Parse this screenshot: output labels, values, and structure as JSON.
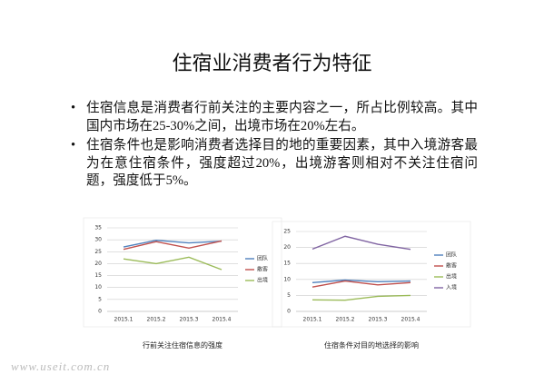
{
  "title": "住宿业消费者行为特征",
  "bullets": [
    "住宿信息是消费者行前关注的主要内容之一，所占比例较高。其中国内市场在25-30%之间，出境市场在20%左右。",
    "住宿条件也是影响消费者选择目的地的重要因素，其中入境游客最为在意住宿条件，强度超过20%，出境游客则相对不关注住宿问题，强度低于5%。"
  ],
  "chart_data": [
    {
      "type": "line",
      "caption": "行前关注住宿信息的强度",
      "categories": [
        "2015.1",
        "2015.2",
        "2015.3",
        "2015.4"
      ],
      "series": [
        {
          "name": "团队",
          "color": "#4f81bd",
          "values": [
            27,
            29.8,
            28.7,
            29.4
          ]
        },
        {
          "name": "散客",
          "color": "#c0504d",
          "values": [
            26,
            29.2,
            26.5,
            29.5
          ]
        },
        {
          "name": "出境",
          "color": "#9bbb59",
          "values": [
            22,
            20,
            22.7,
            17.5
          ]
        }
      ],
      "ylim": [
        0,
        35
      ],
      "yticks": [
        0,
        5,
        10,
        15,
        20,
        25,
        30,
        35
      ],
      "grid": true,
      "legend": "right"
    },
    {
      "type": "line",
      "caption": "住宿条件对目的地选择的影响",
      "categories": [
        "2015.1",
        "2015.2",
        "2015.3",
        "2015.4"
      ],
      "series": [
        {
          "name": "团队",
          "color": "#4f81bd",
          "values": [
            9,
            9.8,
            9.3,
            9.5
          ]
        },
        {
          "name": "散客",
          "color": "#c0504d",
          "values": [
            7.6,
            9.5,
            8.3,
            9
          ]
        },
        {
          "name": "出境",
          "color": "#9bbb59",
          "values": [
            3.6,
            3.5,
            4.7,
            5
          ]
        },
        {
          "name": "入境",
          "color": "#8064a2",
          "values": [
            19.5,
            23.5,
            21,
            19.4
          ]
        }
      ],
      "ylim": [
        0,
        25
      ],
      "yticks": [
        0,
        5,
        10,
        15,
        20,
        25
      ],
      "grid": true,
      "legend": "right"
    }
  ],
  "watermark": "www.useit.com.cn"
}
